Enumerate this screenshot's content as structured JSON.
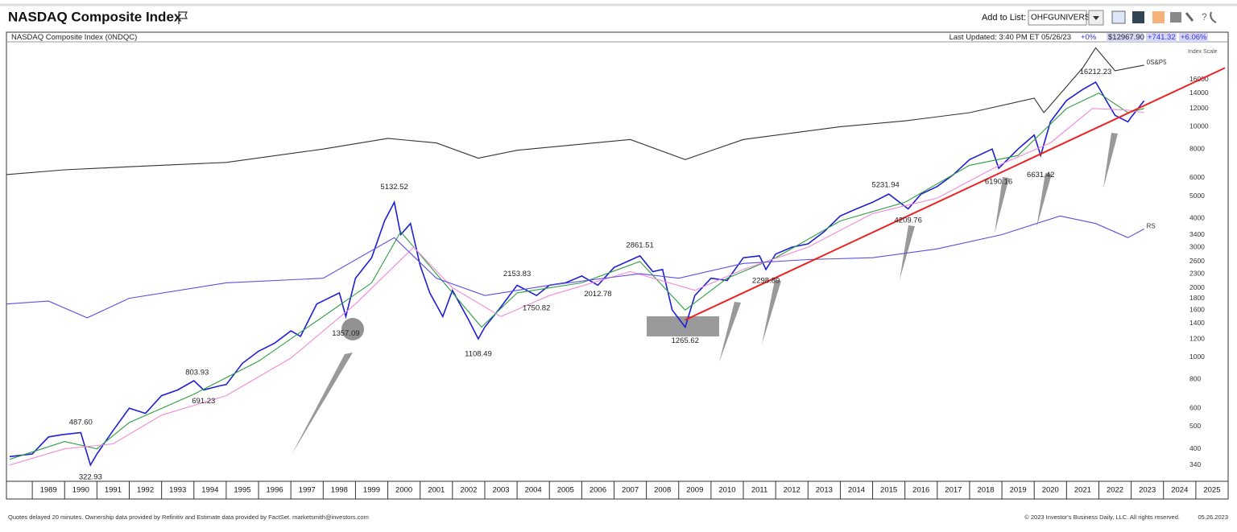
{
  "header": {
    "title": "NASDAQ Composite Index",
    "add_to_list": "Add to List:",
    "list_name": "OHFGUNIVERSE"
  },
  "subheader": {
    "symbol": "NASDAQ Composite Index  (0NDQC)",
    "last_updated": "Last Updated: 3:40 PM ET 05/26/23",
    "stats": [
      "+0%",
      "$12967.90",
      "+741.32",
      "+6.06%"
    ]
  },
  "chart_data": {
    "type": "line",
    "y_label": "Index Scale",
    "log_scale": true,
    "xlim": [
      1988.2,
      2026
    ],
    "xticks": [
      1989,
      1990,
      1991,
      1992,
      1993,
      1994,
      1995,
      1996,
      1997,
      1998,
      1999,
      2000,
      2001,
      2002,
      2003,
      2004,
      2005,
      2006,
      2007,
      2008,
      2009,
      2010,
      2011,
      2012,
      2013,
      2014,
      2015,
      2016,
      2017,
      2018,
      2019,
      2020,
      2021,
      2022,
      2023,
      2024,
      2025
    ],
    "ylim": [
      289,
      23350
    ],
    "yticks": [
      340,
      400,
      500,
      600,
      800,
      1000,
      1200,
      1400,
      1600,
      1800,
      2000,
      2300,
      2600,
      3000,
      3400,
      4000,
      5000,
      6000,
      8000,
      10000,
      12000,
      14000,
      16000
    ],
    "grid": false,
    "series": [
      {
        "color": "#1f1fd6",
        "x": [
          1988.3,
          1989.0,
          1989.5,
          1989.9,
          1990.5,
          1990.8,
          1991.0,
          1991.5,
          1992.0,
          1992.5,
          1993.0,
          1993.5,
          1994.0,
          1994.3,
          1994.8,
          1995.0,
          1995.5,
          1996.0,
          1996.5,
          1997.0,
          1997.3,
          1997.8,
          1998.5,
          1998.7,
          1999.0,
          1999.5,
          1999.9,
          2000.2,
          2000.4,
          2000.7,
          2001.0,
          2001.3,
          2001.7,
          2002.0,
          2002.5,
          2002.8,
          2003.0,
          2003.5,
          2004.0,
          2004.6,
          2005.0,
          2005.5,
          2006.0,
          2006.5,
          2007.0,
          2007.8,
          2008.2,
          2008.5,
          2008.8,
          2009.2,
          2009.5,
          2010.0,
          2010.5,
          2011.0,
          2011.5,
          2011.7,
          2012.0,
          2012.5,
          2013.0,
          2013.5,
          2014.0,
          2014.5,
          2015.0,
          2015.5,
          2016.1,
          2016.5,
          2017.0,
          2017.5,
          2018.0,
          2018.7,
          2018.9,
          2019.5,
          2020.0,
          2020.2,
          2020.5,
          2021.0,
          2021.5,
          2021.9,
          2022.3,
          2022.5,
          2022.9,
          2023.0,
          2023.4
        ],
        "values": [
          370,
          380,
          450,
          460,
          470,
          340,
          380,
          480,
          600,
          570,
          680,
          720,
          790,
          720,
          750,
          760,
          940,
          1060,
          1150,
          1300,
          1230,
          1700,
          1900,
          1500,
          2200,
          2700,
          3900,
          4700,
          3400,
          3800,
          2500,
          1900,
          1500,
          1950,
          1450,
          1200,
          1350,
          1650,
          2050,
          1850,
          2050,
          2100,
          2250,
          2050,
          2450,
          2750,
          2350,
          2400,
          1600,
          1350,
          1850,
          2200,
          2150,
          2700,
          2750,
          2400,
          2800,
          3000,
          3100,
          3500,
          4100,
          4400,
          4700,
          5100,
          4400,
          5100,
          5500,
          6200,
          7200,
          8000,
          6600,
          8000,
          9200,
          7500,
          10500,
          13000,
          14500,
          15600,
          12500,
          11200,
          10500,
          11000,
          12968
        ]
      },
      {
        "color": "#2e9e3e",
        "x": [
          1988.3,
          1990.0,
          1991.0,
          1992.0,
          1994.0,
          1996.0,
          1998.0,
          1999.5,
          2000.4,
          2001.5,
          2002.9,
          2004.0,
          2006.0,
          2007.8,
          2009.2,
          2010.5,
          2012.0,
          2014.0,
          2016.0,
          2018.0,
          2019.5,
          2021.0,
          2022.0,
          2022.9,
          2023.4
        ],
        "values": [
          360,
          430,
          400,
          520,
          690,
          960,
          1500,
          2100,
          3500,
          2300,
          1350,
          1900,
          2100,
          2600,
          1600,
          2200,
          2700,
          3900,
          4700,
          6800,
          7500,
          12000,
          14000,
          11500,
          12000
        ]
      },
      {
        "color": "#f28ad8",
        "x": [
          1988.3,
          1990.0,
          1991.5,
          1993.0,
          1995.0,
          1997.0,
          1999.0,
          2000.8,
          2002.0,
          2003.5,
          2005.0,
          2007.5,
          2009.5,
          2011.0,
          2013.0,
          2015.0,
          2017.0,
          2019.0,
          2020.5,
          2021.8,
          2022.9,
          2023.4
        ],
        "values": [
          340,
          400,
          420,
          560,
          680,
          990,
          1700,
          3000,
          2000,
          1500,
          1850,
          2350,
          1950,
          2400,
          3000,
          4200,
          4900,
          6900,
          8500,
          12000,
          11800,
          11500
        ]
      },
      {
        "name": "0S&P5",
        "color": "#333333",
        "x": [
          1988.2,
          1990.0,
          1992.0,
          1995.0,
          1998.0,
          2000.0,
          2001.5,
          2002.8,
          2004.0,
          2007.5,
          2009.2,
          2011.0,
          2014.0,
          2016.0,
          2018.0,
          2020.0,
          2020.3,
          2021.5,
          2021.9,
          2022.5,
          2023.4
        ],
        "values": [
          6200,
          6500,
          6700,
          7000,
          8000,
          8900,
          8500,
          7300,
          7900,
          8800,
          7200,
          8800,
          10000,
          10600,
          11500,
          13300,
          11500,
          18000,
          22000,
          17500,
          18500
        ]
      },
      {
        "name": "RS",
        "color": "#5b4ee0",
        "x": [
          1988.2,
          1989.5,
          1990.7,
          1992.0,
          1995.0,
          1998.0,
          2000.2,
          2001.5,
          2003.0,
          2005.0,
          2007.8,
          2009.0,
          2011.0,
          2013.0,
          2015.0,
          2017.0,
          2019.0,
          2020.8,
          2021.9,
          2022.9,
          2023.4
        ],
        "values": [
          1700,
          1750,
          1480,
          1800,
          2100,
          2200,
          3300,
          2200,
          1850,
          2050,
          2300,
          2200,
          2550,
          2650,
          2700,
          2950,
          3400,
          4100,
          3800,
          3300,
          3600
        ]
      },
      {
        "color": "#ee2222",
        "x": [
          2009.2,
          2025.9
        ],
        "values": [
          1450,
          18000
        ]
      }
    ],
    "annotations": [
      {
        "x": 1990.5,
        "value": 487.6,
        "label": "487.60"
      },
      {
        "x": 1990.8,
        "value": 322.93,
        "label": "322.93"
      },
      {
        "x": 1994.1,
        "value": 803.93,
        "label": "803.93"
      },
      {
        "x": 1994.3,
        "value": 691.23,
        "label": "691.23"
      },
      {
        "x": 1998.7,
        "value": 1357.09,
        "label": "1357.09"
      },
      {
        "x": 2000.2,
        "value": 5132.52,
        "label": "5132.52"
      },
      {
        "x": 2002.8,
        "value": 1108.49,
        "label": "1108.49"
      },
      {
        "x": 2004.0,
        "value": 2153.83,
        "label": "2153.83"
      },
      {
        "x": 2004.6,
        "value": 1750.82,
        "label": "1750.82"
      },
      {
        "x": 2006.5,
        "value": 2012.78,
        "label": "2012.78"
      },
      {
        "x": 2007.8,
        "value": 2861.51,
        "label": "2861.51"
      },
      {
        "x": 2009.2,
        "value": 1265.62,
        "label": "1265.62"
      },
      {
        "x": 2011.7,
        "value": 2298.89,
        "label": "2298.89"
      },
      {
        "x": 2015.4,
        "value": 5231.94,
        "label": "5231.94"
      },
      {
        "x": 2016.1,
        "value": 4209.76,
        "label": "4209.76"
      },
      {
        "x": 2018.9,
        "value": 6190.16,
        "label": "6190.16"
      },
      {
        "x": 2020.2,
        "value": 6631.42,
        "label": "6631.42"
      },
      {
        "x": 2021.9,
        "value": 16212.23,
        "label": "16212.23"
      }
    ]
  },
  "footer": {
    "left": "Quotes delayed 20 minutes. Ownership data provided by Refinitiv and Estimate data provided by FactSet. marketsmith@investors.com",
    "right": "© 2023 Investor's Business Daily, LLC. All rights reserved.",
    "date": "05.26.2023"
  }
}
